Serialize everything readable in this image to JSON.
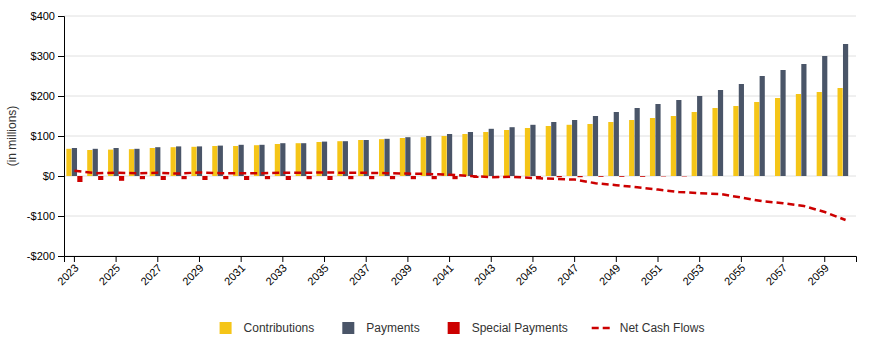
{
  "chart_data": {
    "type": "bar",
    "categories": [
      "2023",
      null,
      "2025",
      null,
      "2027",
      null,
      "2029",
      null,
      "2031",
      null,
      "2033",
      null,
      "2035",
      null,
      "2037",
      null,
      "2039",
      null,
      "2041",
      null,
      "2043",
      null,
      "2045",
      null,
      "2047",
      null,
      "2049",
      null,
      "2051",
      null,
      "2053",
      null,
      "2055",
      null,
      "2057",
      null,
      "2059",
      null
    ],
    "series": [
      {
        "name": "Contributions",
        "type": "bar",
        "color": "#F5C518",
        "values": [
          68,
          65,
          66,
          67,
          70,
          72,
          73,
          75,
          75,
          77,
          80,
          82,
          85,
          87,
          90,
          92,
          95,
          97,
          100,
          105,
          110,
          115,
          120,
          125,
          128,
          130,
          135,
          140,
          145,
          150,
          160,
          170,
          175,
          185,
          195,
          205,
          210,
          220
        ]
      },
      {
        "name": "Payments",
        "type": "bar",
        "color": "#4A5568",
        "values": [
          70,
          68,
          70,
          68,
          72,
          74,
          74,
          76,
          78,
          78,
          82,
          82,
          86,
          87,
          90,
          93,
          97,
          100,
          105,
          110,
          118,
          122,
          128,
          135,
          140,
          150,
          160,
          170,
          180,
          190,
          200,
          215,
          230,
          250,
          265,
          280,
          300,
          330
        ]
      },
      {
        "name": "Special Payments",
        "type": "bar",
        "color": "#CC0000",
        "values": [
          -15,
          -10,
          -12,
          -8,
          -10,
          -8,
          -10,
          -8,
          -10,
          -8,
          -10,
          -8,
          -10,
          -8,
          -8,
          -8,
          -8,
          -8,
          -8,
          -5,
          -5,
          -5,
          -3,
          -3,
          -3,
          -2,
          -2,
          -2,
          -1,
          -1,
          0,
          0,
          0,
          0,
          0,
          0,
          0,
          0
        ]
      },
      {
        "name": "Net Cash Flows",
        "type": "line",
        "color": "#CC0000",
        "line_style": "dashed",
        "values": [
          13,
          7,
          8,
          7,
          8,
          6,
          9,
          7,
          7,
          7,
          8,
          8,
          9,
          8,
          8,
          7,
          6,
          5,
          3,
          0,
          -3,
          -2,
          -5,
          -7,
          -9,
          -18,
          -23,
          -28,
          -34,
          -40,
          -43,
          -45,
          -54,
          -63,
          -68,
          -75,
          -90,
          -110
        ]
      }
    ],
    "y_label": "(in millions)",
    "ylim": [
      -200,
      400
    ],
    "yticks": [
      {
        "value": -200,
        "label": "-$200"
      },
      {
        "value": -100,
        "label": "-$100"
      },
      {
        "value": 0,
        "label": "$0"
      },
      {
        "value": 100,
        "label": "$100"
      },
      {
        "value": 200,
        "label": "$200"
      },
      {
        "value": 300,
        "label": "$300"
      },
      {
        "value": 400,
        "label": "$400"
      }
    ],
    "grid": true,
    "legend": "bottom"
  }
}
